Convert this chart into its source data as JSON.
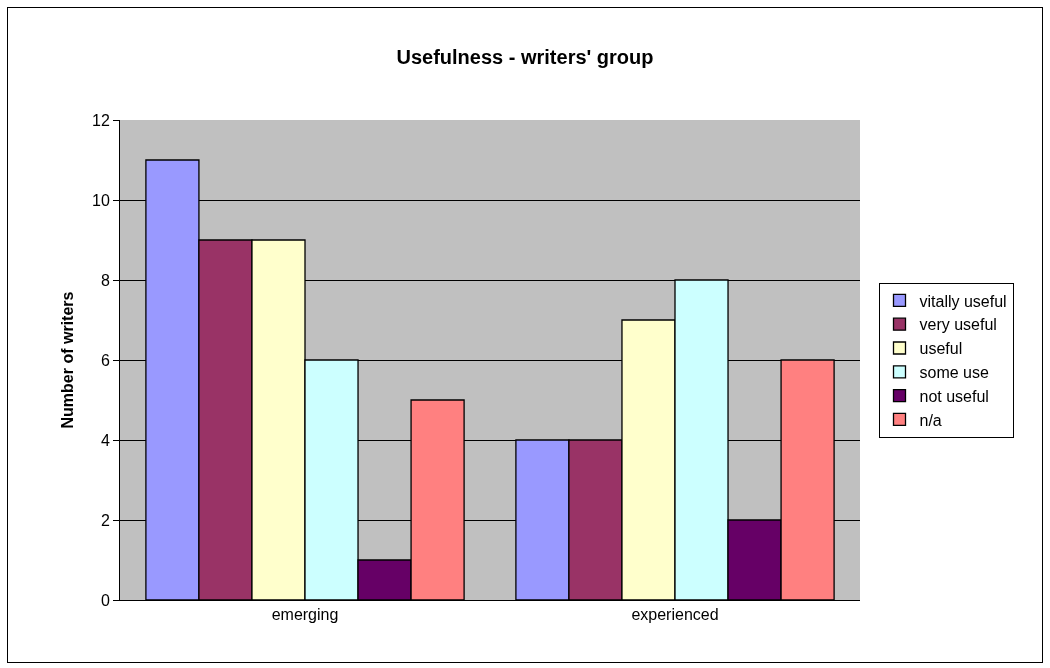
{
  "chart_data": {
    "type": "bar",
    "title": "Usefulness - writers' group",
    "ylabel": "Number of writers",
    "categories": [
      "emerging",
      "experienced"
    ],
    "series": [
      {
        "name": "vitally useful",
        "color": "#9999ff",
        "values": [
          11,
          4
        ]
      },
      {
        "name": "very useful",
        "color": "#993366",
        "values": [
          9,
          4
        ]
      },
      {
        "name": "useful",
        "color": "#ffffcc",
        "values": [
          9,
          7
        ]
      },
      {
        "name": "some use",
        "color": "#ccffff",
        "values": [
          6,
          8
        ]
      },
      {
        "name": "not useful",
        "color": "#660066",
        "values": [
          1,
          2
        ]
      },
      {
        "name": "n/a",
        "color": "#ff8080",
        "values": [
          5,
          6
        ]
      }
    ],
    "ylim": [
      0,
      12
    ],
    "yticks": [
      0,
      2,
      4,
      6,
      8,
      10,
      12
    ],
    "grid": "y",
    "legend": "right"
  }
}
